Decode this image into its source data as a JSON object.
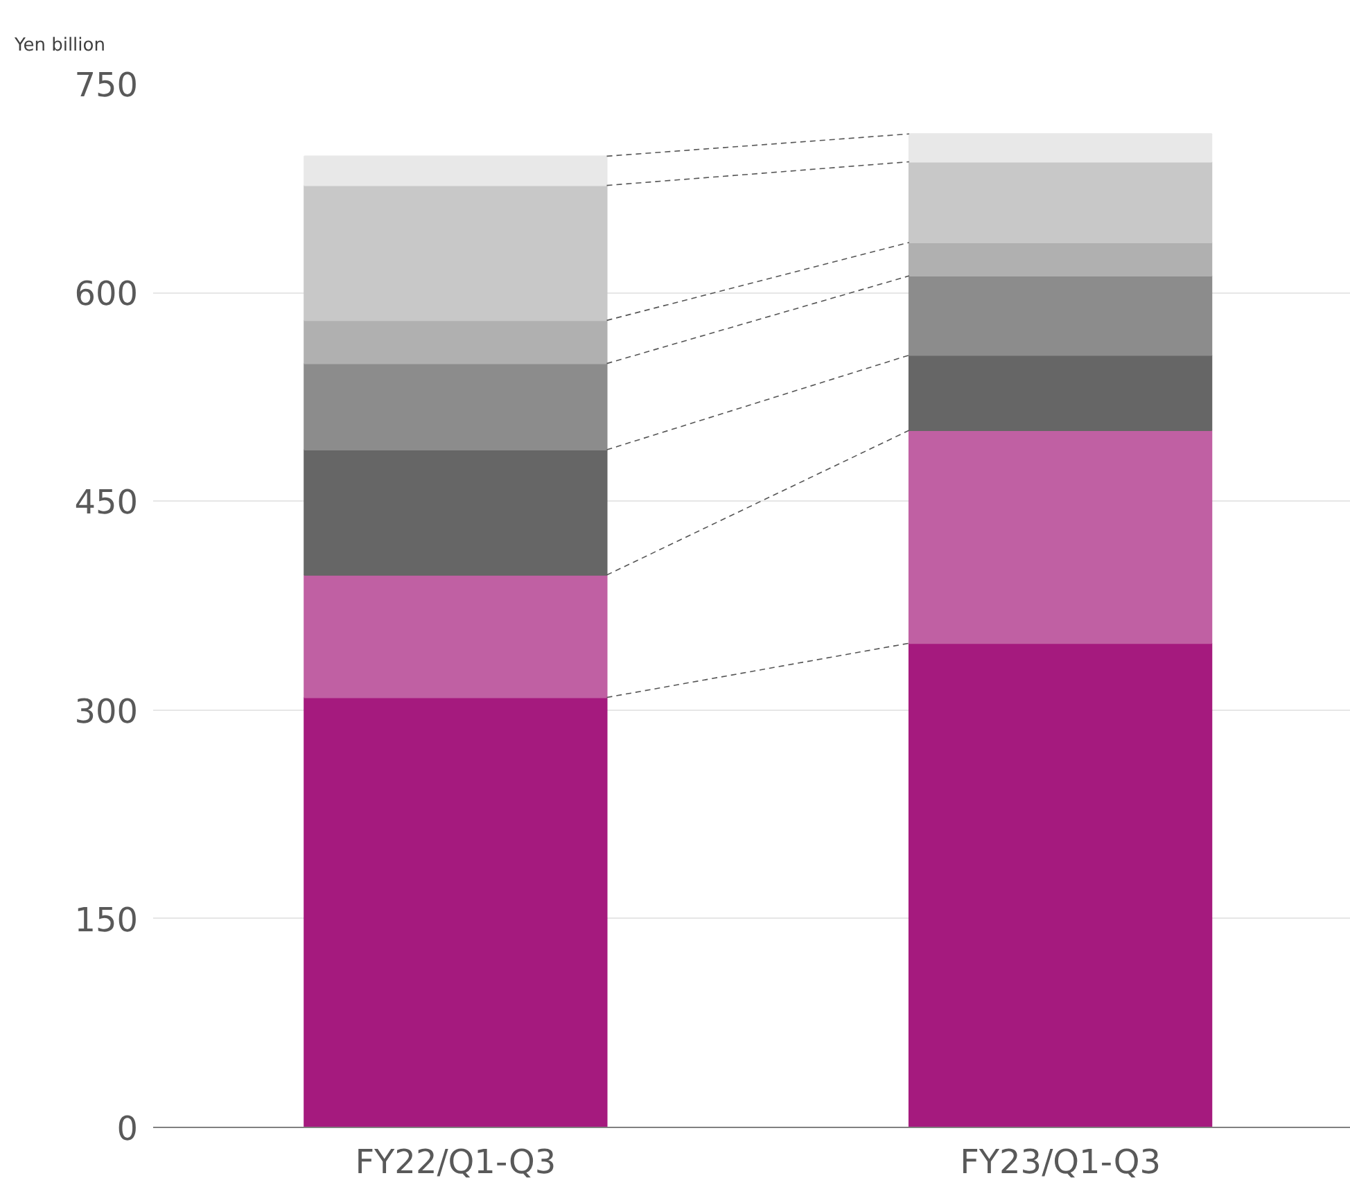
{
  "chart_data": {
    "type": "bar",
    "stacked": true,
    "ylabel": "Yen billion",
    "categories": [
      "FY22/Q1-Q3",
      "FY23/Q1-Q3"
    ],
    "series": [
      {
        "color": "#a51a7e",
        "values": [
          309,
          348
        ]
      },
      {
        "color": "#c060a3",
        "values": [
          88,
          153
        ]
      },
      {
        "color": "#666666",
        "values": [
          90,
          54
        ]
      },
      {
        "color": "#8c8c8c",
        "values": [
          62,
          57
        ]
      },
      {
        "color": "#b0b0b0",
        "values": [
          31,
          24
        ]
      },
      {
        "color": "#c8c8c8",
        "values": [
          97,
          58
        ]
      },
      {
        "color": "#e8e8e8",
        "values": [
          21,
          20
        ]
      }
    ],
    "ylim": [
      0,
      750
    ],
    "yticks": [
      0,
      150,
      300,
      450,
      600,
      750
    ],
    "grid": "y"
  }
}
